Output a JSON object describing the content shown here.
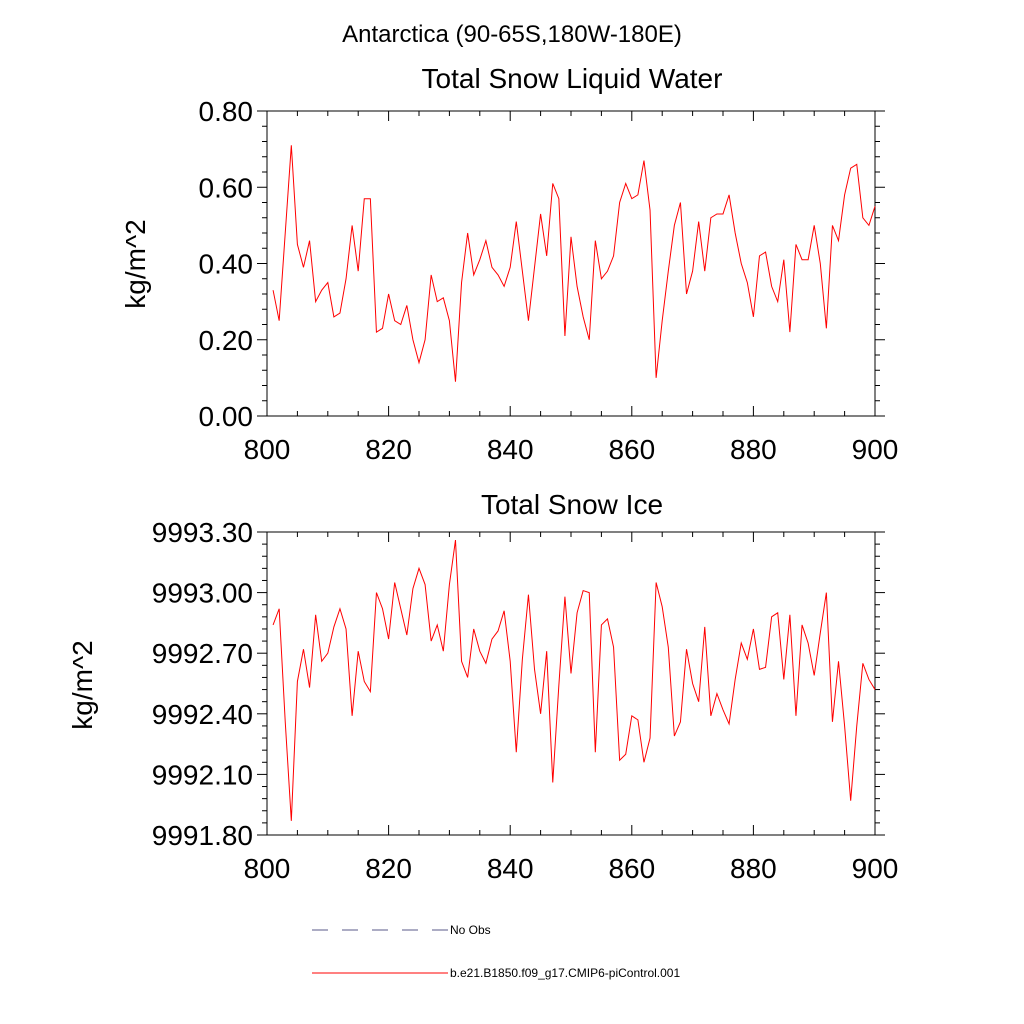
{
  "figure": {
    "main_title": "Antarctica (90-65S,180W-180E)",
    "legend": [
      {
        "label": "No Obs",
        "style": "dashed",
        "color": "#5a5a88"
      },
      {
        "label": "b.e21.B1850.f09_g17.CMIP6-piControl.001",
        "style": "solid",
        "color": "#ff0000"
      }
    ]
  },
  "chart_data": [
    {
      "type": "line",
      "title": "Total Snow Liquid Water",
      "xlabel": "",
      "ylabel": "kg/m^2",
      "xlim": [
        800,
        900
      ],
      "ylim": [
        0.0,
        0.8
      ],
      "x_ticks": [
        800,
        820,
        840,
        860,
        880,
        900
      ],
      "x_tick_labels": [
        "800",
        "820",
        "840",
        "860",
        "880",
        "900"
      ],
      "y_ticks": [
        0.0,
        0.2,
        0.4,
        0.6,
        0.8
      ],
      "y_tick_labels": [
        "0.00",
        "0.20",
        "0.40",
        "0.60",
        "0.80"
      ],
      "y_minor_step": 0.04,
      "x_minor_step": 5,
      "grid": false,
      "series": [
        {
          "name": "b.e21.B1850.f09_g17.CMIP6-piControl.001",
          "color": "#ff0000",
          "x_start": 801,
          "values": [
            0.33,
            0.25,
            0.48,
            0.71,
            0.45,
            0.39,
            0.46,
            0.3,
            0.33,
            0.35,
            0.26,
            0.27,
            0.36,
            0.5,
            0.38,
            0.57,
            0.57,
            0.22,
            0.23,
            0.32,
            0.25,
            0.24,
            0.29,
            0.2,
            0.14,
            0.2,
            0.37,
            0.3,
            0.31,
            0.25,
            0.09,
            0.35,
            0.48,
            0.37,
            0.41,
            0.46,
            0.39,
            0.37,
            0.34,
            0.39,
            0.51,
            0.38,
            0.25,
            0.39,
            0.53,
            0.42,
            0.61,
            0.57,
            0.21,
            0.47,
            0.34,
            0.26,
            0.2,
            0.46,
            0.36,
            0.38,
            0.42,
            0.56,
            0.61,
            0.57,
            0.58,
            0.67,
            0.54,
            0.1,
            0.25,
            0.38,
            0.5,
            0.56,
            0.32,
            0.38,
            0.51,
            0.38,
            0.52,
            0.53,
            0.53,
            0.58,
            0.48,
            0.4,
            0.35,
            0.26,
            0.42,
            0.43,
            0.34,
            0.3,
            0.41,
            0.22,
            0.45,
            0.41,
            0.41,
            0.5,
            0.4,
            0.23,
            0.5,
            0.46,
            0.58,
            0.65,
            0.66,
            0.52,
            0.5,
            0.55
          ]
        }
      ]
    },
    {
      "type": "line",
      "title": "Total Snow Ice",
      "xlabel": "",
      "ylabel": "kg/m^2",
      "xlim": [
        800,
        900
      ],
      "ylim": [
        9991.8,
        9993.3
      ],
      "x_ticks": [
        800,
        820,
        840,
        860,
        880,
        900
      ],
      "x_tick_labels": [
        "800",
        "820",
        "840",
        "860",
        "880",
        "900"
      ],
      "y_ticks": [
        9991.8,
        9992.1,
        9992.4,
        9992.7,
        9993.0,
        9993.3
      ],
      "y_tick_labels": [
        "9991.80",
        "9992.10",
        "9992.40",
        "9992.70",
        "9993.00",
        "9993.30"
      ],
      "y_minor_step": 0.06,
      "x_minor_step": 5,
      "grid": false,
      "series": [
        {
          "name": "b.e21.B1850.f09_g17.CMIP6-piControl.001",
          "color": "#ff0000",
          "x_start": 801,
          "values": [
            9992.84,
            9992.92,
            9992.36,
            9991.87,
            9992.56,
            9992.72,
            9992.53,
            9992.89,
            9992.66,
            9992.7,
            9992.83,
            9992.92,
            9992.82,
            9992.39,
            9992.71,
            9992.56,
            9992.51,
            9993.0,
            9992.92,
            9992.77,
            9993.05,
            9992.92,
            9992.79,
            9993.02,
            9993.12,
            9993.04,
            9992.76,
            9992.84,
            9992.71,
            9993.04,
            9993.26,
            9992.66,
            9992.58,
            9992.82,
            9992.71,
            9992.65,
            9992.77,
            9992.81,
            9992.91,
            9992.66,
            9992.21,
            9992.67,
            9992.99,
            9992.62,
            9992.4,
            9992.71,
            9992.06,
            9992.54,
            9992.98,
            9992.6,
            9992.9,
            9993.01,
            9993.0,
            9992.21,
            9992.84,
            9992.87,
            9992.73,
            9992.17,
            9992.2,
            9992.39,
            9992.37,
            9992.16,
            9992.28,
            9993.05,
            9992.93,
            9992.73,
            9992.29,
            9992.36,
            9992.72,
            9992.55,
            9992.46,
            9992.83,
            9992.39,
            9992.5,
            9992.42,
            9992.35,
            9992.57,
            9992.75,
            9992.67,
            9992.82,
            9992.62,
            9992.63,
            9992.88,
            9992.9,
            9992.57,
            9992.89,
            9992.39,
            9992.84,
            9992.75,
            9992.59,
            9992.8,
            9993.0,
            9992.36,
            9992.66,
            9992.34,
            9991.97,
            9992.34,
            9992.65,
            9992.57,
            9992.52
          ]
        }
      ]
    }
  ]
}
